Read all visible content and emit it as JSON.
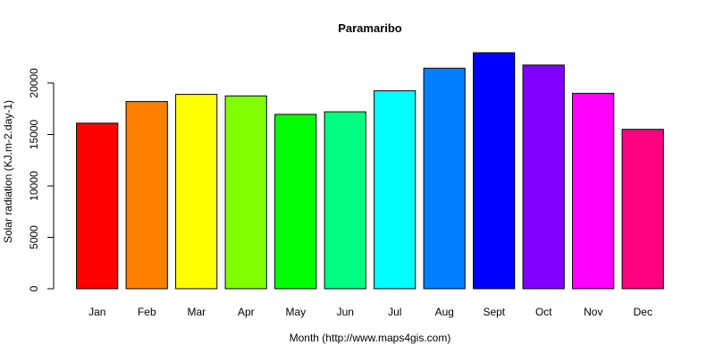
{
  "chart_data": {
    "type": "bar",
    "title": "Paramaribo",
    "xlabel": "Month (http://www.maps4gis.com)",
    "ylabel": "Solar radiation (KJ.m-2.day-1)",
    "categories": [
      "Jan",
      "Feb",
      "Mar",
      "Apr",
      "May",
      "Jun",
      "Jul",
      "Aug",
      "Sept",
      "Oct",
      "Nov",
      "Dec"
    ],
    "values": [
      16100,
      18200,
      18900,
      18750,
      16950,
      17200,
      19250,
      21450,
      22950,
      21750,
      19000,
      15500
    ],
    "colors": [
      "#FF0000",
      "#FF8000",
      "#FFFF00",
      "#80FF00",
      "#00FF00",
      "#00FF80",
      "#00FFFF",
      "#0080FF",
      "#0000FF",
      "#8000FF",
      "#FF00FF",
      "#FF0080"
    ],
    "ylim": [
      0,
      22950
    ],
    "yticks": [
      0,
      5000,
      10000,
      15000,
      20000
    ],
    "grid": false,
    "legend": "none"
  }
}
